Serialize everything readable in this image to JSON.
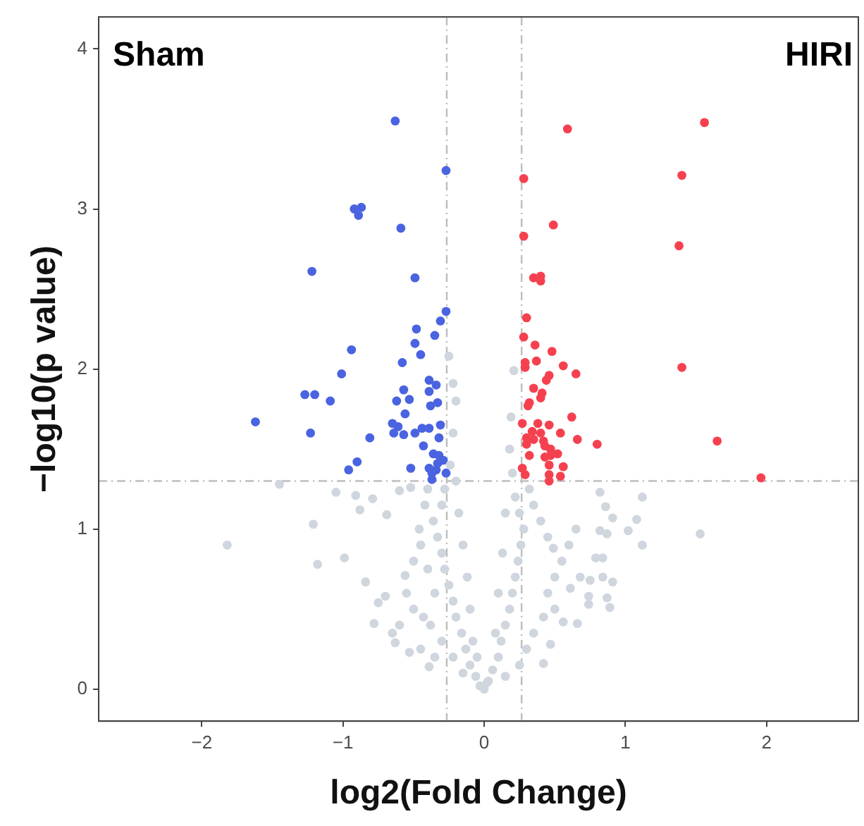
{
  "chart_data": {
    "type": "scatter",
    "xlabel": "log2(Fold Change)",
    "ylabel": "−log10(p value)",
    "annotations": [
      "Sham",
      "HIRI"
    ],
    "xlim": [
      -2.73,
      2.65
    ],
    "ylim": [
      -0.2,
      4.2
    ],
    "xticks": [
      -2,
      -1,
      0,
      1,
      2
    ],
    "yticks": [
      0,
      1,
      2,
      3,
      4
    ],
    "grid": false,
    "legend": false,
    "marker": "circle",
    "ref_lines": [
      {
        "axis": "x",
        "value": -0.265,
        "color": "#bdbdbd",
        "line_style": "dashed"
      },
      {
        "axis": "x",
        "value": 0.265,
        "color": "#bdbdbd",
        "line_style": "dashed"
      },
      {
        "axis": "y",
        "value": 1.3,
        "color": "#bdbdbd",
        "line_style": "dashed"
      }
    ],
    "series": [
      {
        "color": "#cfd6de",
        "x": [
          -0.03,
          -0.06,
          -0.1,
          -0.13,
          -0.16,
          -0.2,
          -0.22,
          -0.25,
          -0.28,
          -0.3,
          -0.33,
          -0.36,
          -0.3,
          -0.28,
          -0.24,
          -0.22,
          -0.2,
          -0.15,
          -0.22,
          -0.3,
          -0.38,
          -0.43,
          -0.5,
          -0.55,
          -0.56,
          -0.5,
          -0.46,
          -0.42,
          -0.4,
          -0.35,
          -0.4,
          -0.45,
          -0.6,
          -0.65,
          -0.7,
          -0.45,
          -0.35,
          -0.08,
          -0.1,
          -0.12,
          -0.15,
          -0.18,
          -0.2,
          -0.05,
          0.0,
          0.02,
          0.03,
          0.06,
          0.1,
          0.12,
          0.15,
          0.18,
          0.2,
          0.22,
          0.24,
          0.26,
          0.28,
          0.25,
          0.22,
          0.2,
          0.18,
          0.19,
          0.21,
          0.15,
          0.25,
          0.3,
          0.35,
          0.42,
          0.5,
          0.56,
          0.45,
          0.5,
          0.55,
          0.45,
          0.4,
          0.35,
          0.32,
          0.6,
          0.65,
          0.08,
          0.1,
          0.13,
          0.15,
          -1.45,
          -1.05,
          -0.91,
          -0.79,
          -0.88,
          -1.21,
          -1.82,
          -1.18,
          -0.99,
          -0.84,
          -0.69,
          -0.6,
          -0.52,
          -0.75,
          -0.78,
          -0.63,
          -0.53,
          -0.39,
          -0.25,
          -0.22,
          0.82,
          1.12,
          0.86,
          0.91,
          1.08,
          1.02,
          0.82,
          0.87,
          1.12,
          1.53,
          0.68,
          0.75,
          0.84,
          0.91,
          0.74,
          0.87,
          0.74,
          0.89,
          0.66,
          0.61,
          0.79,
          0.84,
          0.49,
          0.42,
          0.47
        ],
        "values": [
          0.02,
          0.08,
          0.15,
          0.25,
          0.35,
          0.45,
          0.55,
          0.65,
          0.75,
          0.85,
          0.95,
          1.05,
          1.15,
          1.25,
          1.4,
          1.6,
          1.8,
          0.1,
          0.2,
          0.3,
          0.4,
          0.45,
          0.5,
          0.6,
          0.71,
          0.8,
          1.0,
          1.15,
          1.25,
          0.6,
          0.75,
          0.9,
          0.4,
          0.35,
          0.58,
          0.25,
          0.2,
          0.3,
          0.5,
          0.7,
          0.9,
          1.1,
          1.3,
          0.2,
          0.0,
          0.04,
          0.05,
          0.12,
          0.2,
          0.3,
          0.4,
          0.5,
          0.6,
          0.7,
          0.8,
          0.9,
          1.0,
          1.1,
          1.2,
          1.35,
          1.5,
          1.7,
          1.99,
          0.08,
          0.15,
          0.25,
          0.35,
          0.45,
          0.5,
          0.42,
          0.6,
          0.7,
          0.8,
          0.95,
          1.05,
          1.15,
          1.25,
          0.9,
          1.0,
          0.35,
          0.6,
          0.85,
          1.1,
          1.28,
          1.23,
          1.21,
          1.19,
          1.12,
          1.03,
          0.9,
          0.78,
          0.82,
          0.67,
          1.09,
          1.24,
          1.26,
          0.54,
          0.41,
          0.29,
          0.23,
          0.14,
          2.08,
          1.91,
          1.23,
          1.2,
          1.14,
          1.07,
          1.06,
          0.99,
          0.99,
          0.97,
          0.9,
          0.97,
          0.7,
          0.68,
          0.7,
          0.67,
          0.58,
          0.57,
          0.53,
          0.51,
          0.41,
          0.63,
          0.82,
          0.82,
          0.88,
          0.16,
          0.28
        ]
      },
      {
        "color": "#4a63e0",
        "x": [
          -0.63,
          -0.27,
          -0.92,
          -0.87,
          -0.89,
          -0.59,
          -1.22,
          -0.49,
          -0.27,
          -0.31,
          -0.48,
          -0.35,
          -0.49,
          -0.94,
          -0.45,
          -0.58,
          -1.01,
          -0.39,
          -0.34,
          -0.57,
          -0.39,
          -1.27,
          -1.2,
          -1.09,
          -0.62,
          -0.53,
          -0.38,
          -0.33,
          -0.56,
          -1.62,
          -0.65,
          -0.61,
          -0.44,
          -0.39,
          -0.31,
          -1.23,
          -0.64,
          -0.57,
          -0.49,
          -0.81,
          -0.32,
          -0.43,
          -0.36,
          -0.32,
          -0.29,
          -0.9,
          -0.96,
          -0.52,
          -0.39,
          -0.37,
          -0.34,
          -0.33,
          -0.37,
          -0.27
        ],
        "values": [
          3.55,
          3.24,
          3.0,
          3.01,
          2.96,
          2.88,
          2.61,
          2.57,
          2.36,
          2.3,
          2.25,
          2.21,
          2.16,
          2.12,
          2.09,
          2.04,
          1.97,
          1.93,
          1.9,
          1.87,
          1.86,
          1.84,
          1.84,
          1.8,
          1.8,
          1.81,
          1.77,
          1.79,
          1.72,
          1.67,
          1.66,
          1.64,
          1.63,
          1.63,
          1.65,
          1.6,
          1.6,
          1.59,
          1.6,
          1.57,
          1.57,
          1.52,
          1.47,
          1.46,
          1.43,
          1.42,
          1.37,
          1.38,
          1.38,
          1.35,
          1.37,
          1.41,
          1.31,
          1.35
        ]
      },
      {
        "color": "#f5414f",
        "x": [
          1.56,
          0.59,
          0.28,
          1.4,
          0.49,
          0.28,
          1.38,
          0.35,
          0.4,
          0.4,
          0.3,
          0.28,
          0.36,
          0.48,
          0.29,
          0.37,
          0.56,
          1.4,
          0.29,
          0.65,
          0.46,
          0.44,
          0.35,
          0.41,
          0.4,
          0.32,
          0.31,
          0.62,
          0.27,
          0.38,
          0.46,
          0.34,
          0.4,
          0.54,
          0.3,
          0.35,
          0.42,
          0.66,
          0.8,
          1.65,
          0.3,
          0.43,
          0.47,
          0.32,
          0.43,
          0.47,
          0.52,
          0.56,
          0.46,
          0.27,
          0.29,
          0.46,
          0.54,
          0.46,
          1.96
        ],
        "values": [
          3.54,
          3.5,
          3.19,
          3.21,
          2.9,
          2.83,
          2.77,
          2.57,
          2.58,
          2.55,
          2.32,
          2.2,
          2.15,
          2.11,
          2.04,
          2.05,
          2.02,
          2.01,
          2.01,
          1.97,
          1.96,
          1.93,
          1.88,
          1.85,
          1.82,
          1.79,
          1.77,
          1.7,
          1.66,
          1.66,
          1.65,
          1.61,
          1.6,
          1.6,
          1.57,
          1.56,
          1.55,
          1.56,
          1.53,
          1.55,
          1.53,
          1.52,
          1.5,
          1.46,
          1.45,
          1.46,
          1.47,
          1.39,
          1.4,
          1.38,
          1.34,
          1.34,
          1.33,
          1.3,
          1.32
        ]
      }
    ]
  }
}
